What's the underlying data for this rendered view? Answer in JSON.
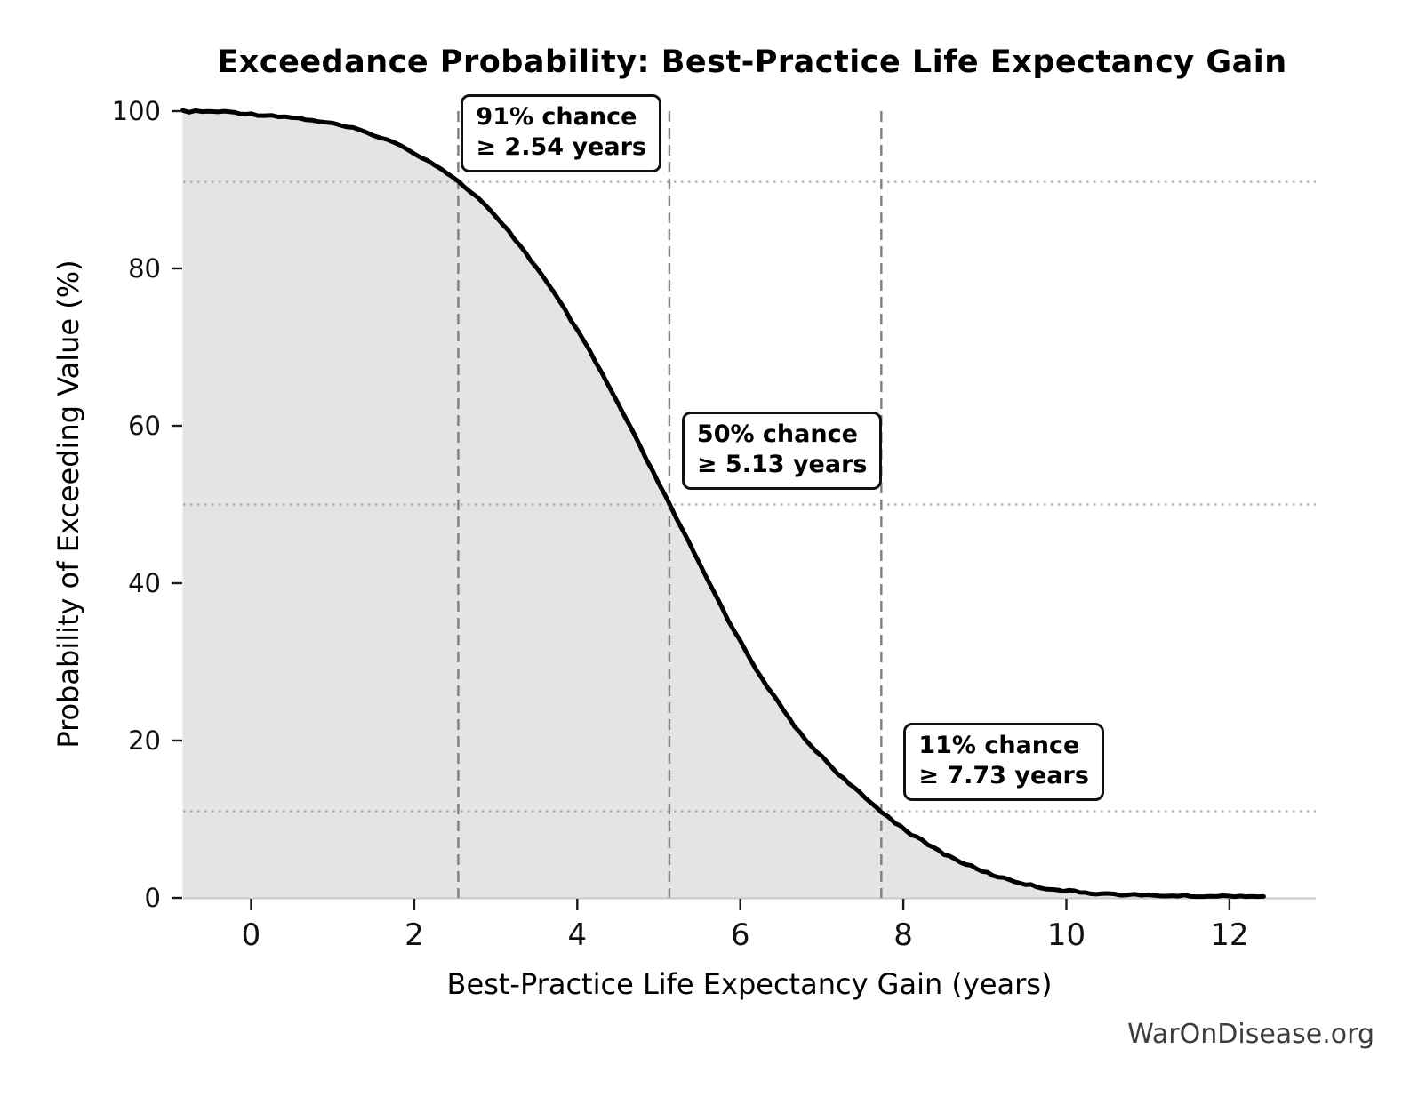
{
  "watermark": "WarOnDisease.org",
  "chart_data": {
    "type": "line",
    "title": "Exceedance Probability: Best-Practice Life Expectancy Gain",
    "xlabel": "Best-Practice Life Expectancy Gain (years)",
    "ylabel": "Probability of Exceeding Value (%)",
    "xlim": [
      -0.84,
      13.06
    ],
    "ylim": [
      0,
      100
    ],
    "x_ticks": [
      0,
      2,
      4,
      6,
      8,
      10,
      12
    ],
    "y_ticks": [
      0,
      20,
      40,
      60,
      80,
      100
    ],
    "grid": "dotted horizontal lines at annotated probabilities, dashed vertical lines at annotated gains",
    "legend": "none",
    "colors": {
      "curve": "#000000",
      "area_fill": "#e4e4e4",
      "vline": "#7f7f7f",
      "hline": "#ababab",
      "spine": "#c9c9c9",
      "tick": "#1a1a1a",
      "watermark_text": "#3d3d3d"
    },
    "series": [
      {
        "name": "Exceedance probability (chance gain exceeds value)",
        "fill_under": true,
        "points": [
          [
            -0.84,
            99.97
          ],
          [
            -0.6,
            99.95
          ],
          [
            -0.4,
            99.93
          ],
          [
            -0.2,
            99.85
          ],
          [
            0,
            99.6
          ],
          [
            0.25,
            99.45
          ],
          [
            0.5,
            99.2
          ],
          [
            0.75,
            98.85
          ],
          [
            1.0,
            98.4
          ],
          [
            1.25,
            97.8
          ],
          [
            1.5,
            97.0
          ],
          [
            1.75,
            96.0
          ],
          [
            2.0,
            94.7
          ],
          [
            2.25,
            93.2
          ],
          [
            2.4,
            92.2
          ],
          [
            2.54,
            91.0
          ],
          [
            2.7,
            89.7
          ],
          [
            2.85,
            88.3
          ],
          [
            3.0,
            86.5
          ],
          [
            3.15,
            84.8
          ],
          [
            3.3,
            82.9
          ],
          [
            3.5,
            80.1
          ],
          [
            3.7,
            77.1
          ],
          [
            3.85,
            74.7
          ],
          [
            4.0,
            72.1
          ],
          [
            4.15,
            69.5
          ],
          [
            4.3,
            66.7
          ],
          [
            4.5,
            62.8
          ],
          [
            4.7,
            58.8
          ],
          [
            4.85,
            55.7
          ],
          [
            5.0,
            52.7
          ],
          [
            5.13,
            50.0
          ],
          [
            5.3,
            46.6
          ],
          [
            5.5,
            42.4
          ],
          [
            5.7,
            38.4
          ],
          [
            5.85,
            35.4
          ],
          [
            6.0,
            32.6
          ],
          [
            6.2,
            29.0
          ],
          [
            6.4,
            25.8
          ],
          [
            6.6,
            22.8
          ],
          [
            6.8,
            20.0
          ],
          [
            7.0,
            18.0
          ],
          [
            7.2,
            15.8
          ],
          [
            7.4,
            13.9
          ],
          [
            7.6,
            12.1
          ],
          [
            7.73,
            11.0
          ],
          [
            7.9,
            9.6
          ],
          [
            8.1,
            8.1
          ],
          [
            8.3,
            6.8
          ],
          [
            8.5,
            5.6
          ],
          [
            8.7,
            4.6
          ],
          [
            8.9,
            3.7
          ],
          [
            9.1,
            2.9
          ],
          [
            9.3,
            2.3
          ],
          [
            9.5,
            1.75
          ],
          [
            9.7,
            1.3
          ],
          [
            9.9,
            1.0
          ],
          [
            10.1,
            0.8
          ],
          [
            10.3,
            0.62
          ],
          [
            10.5,
            0.5
          ],
          [
            10.75,
            0.4
          ],
          [
            11.0,
            0.32
          ],
          [
            11.3,
            0.27
          ],
          [
            11.6,
            0.23
          ],
          [
            12.0,
            0.2
          ],
          [
            12.2,
            0.19
          ],
          [
            12.42,
            0.18
          ]
        ]
      }
    ],
    "annotations": [
      {
        "line1": "91% chance",
        "line2": "≥ 2.54 years",
        "x_years": 2.54,
        "probability_pct": 91
      },
      {
        "line1": "50% chance",
        "line2": "≥ 5.13 years",
        "x_years": 5.13,
        "probability_pct": 50
      },
      {
        "line1": "11% chance",
        "line2": "≥ 7.73 years",
        "x_years": 7.73,
        "probability_pct": 11
      }
    ]
  }
}
